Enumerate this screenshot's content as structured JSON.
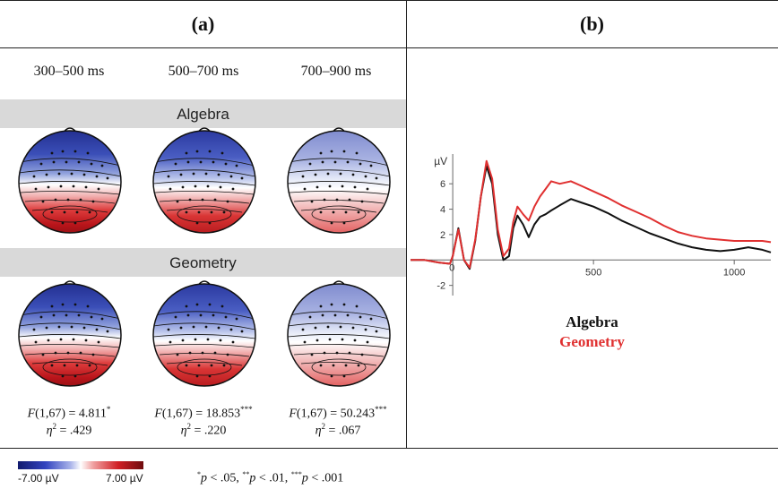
{
  "panels": {
    "a": "(a)",
    "b": "(b)"
  },
  "time_windows": [
    "300–500 ms",
    "500–700 ms",
    "700–900 ms"
  ],
  "conditions": [
    "Algebra",
    "Geometry"
  ],
  "stats": [
    {
      "f": "(1,67) = 4.811",
      "sig": "*",
      "eta": " = .429"
    },
    {
      "f": "(1,67) = 18.853",
      "sig": "***",
      "eta": " = .220"
    },
    {
      "f": "(1,67) = 50.243",
      "sig": "***",
      "eta": " = .067"
    }
  ],
  "colorbar": {
    "min_label": "-7.00 µV",
    "max_label": "7.00 µV"
  },
  "p_note": {
    "a": "p",
    "a_rest": " < .05, ",
    "b": "p",
    "b_rest": " < .01, ",
    "c": "p",
    "c_rest": " < .001",
    "sig1": "*",
    "sig2": "**",
    "sig3": "***"
  },
  "colors": {
    "algebra": "#111111",
    "geometry": "#e03030",
    "neg": "#2b3a9c",
    "pos": "#c0161c"
  },
  "chart_data": {
    "type": "line",
    "ylabel": "µV",
    "xlim": [
      -150,
      1130
    ],
    "ylim": [
      -2.8,
      8.2
    ],
    "xticks": [
      0,
      500,
      1000
    ],
    "yticks": [
      -2,
      2,
      4,
      6
    ],
    "grid": false,
    "legend": "below",
    "series": [
      {
        "name": "Algebra",
        "color": "#111111",
        "x": [
          -150,
          -100,
          -50,
          -10,
          0,
          20,
          40,
          60,
          80,
          100,
          120,
          140,
          160,
          180,
          200,
          215,
          230,
          250,
          270,
          290,
          310,
          330,
          350,
          380,
          420,
          460,
          500,
          550,
          600,
          650,
          700,
          750,
          800,
          850,
          900,
          950,
          1000,
          1050,
          1100,
          1130
        ],
        "y": [
          0,
          0,
          -0.2,
          -0.3,
          0.3,
          2.5,
          0,
          -0.7,
          1.5,
          5,
          7.4,
          6,
          2,
          0,
          0.3,
          2.5,
          3.5,
          2.8,
          1.8,
          2.8,
          3.4,
          3.6,
          3.9,
          4.3,
          4.8,
          4.5,
          4.2,
          3.7,
          3.1,
          2.6,
          2.1,
          1.7,
          1.3,
          1.0,
          0.8,
          0.7,
          0.8,
          1.0,
          0.8,
          0.6
        ]
      },
      {
        "name": "Geometry",
        "color": "#e03030",
        "x": [
          -150,
          -100,
          -50,
          -10,
          0,
          20,
          40,
          60,
          80,
          100,
          120,
          140,
          160,
          180,
          200,
          215,
          230,
          250,
          270,
          290,
          310,
          330,
          350,
          380,
          420,
          460,
          500,
          550,
          600,
          650,
          700,
          750,
          800,
          850,
          900,
          950,
          1000,
          1050,
          1100,
          1130
        ],
        "y": [
          0,
          0,
          -0.2,
          -0.3,
          0.3,
          2.4,
          0,
          -0.6,
          1.6,
          5,
          7.8,
          6.4,
          2.4,
          0.3,
          0.9,
          3,
          4.2,
          3.6,
          3.1,
          4.2,
          5,
          5.6,
          6.2,
          6.0,
          6.2,
          5.8,
          5.4,
          4.9,
          4.3,
          3.8,
          3.3,
          2.7,
          2.2,
          1.9,
          1.7,
          1.6,
          1.5,
          1.5,
          1.5,
          1.4
        ]
      }
    ]
  }
}
